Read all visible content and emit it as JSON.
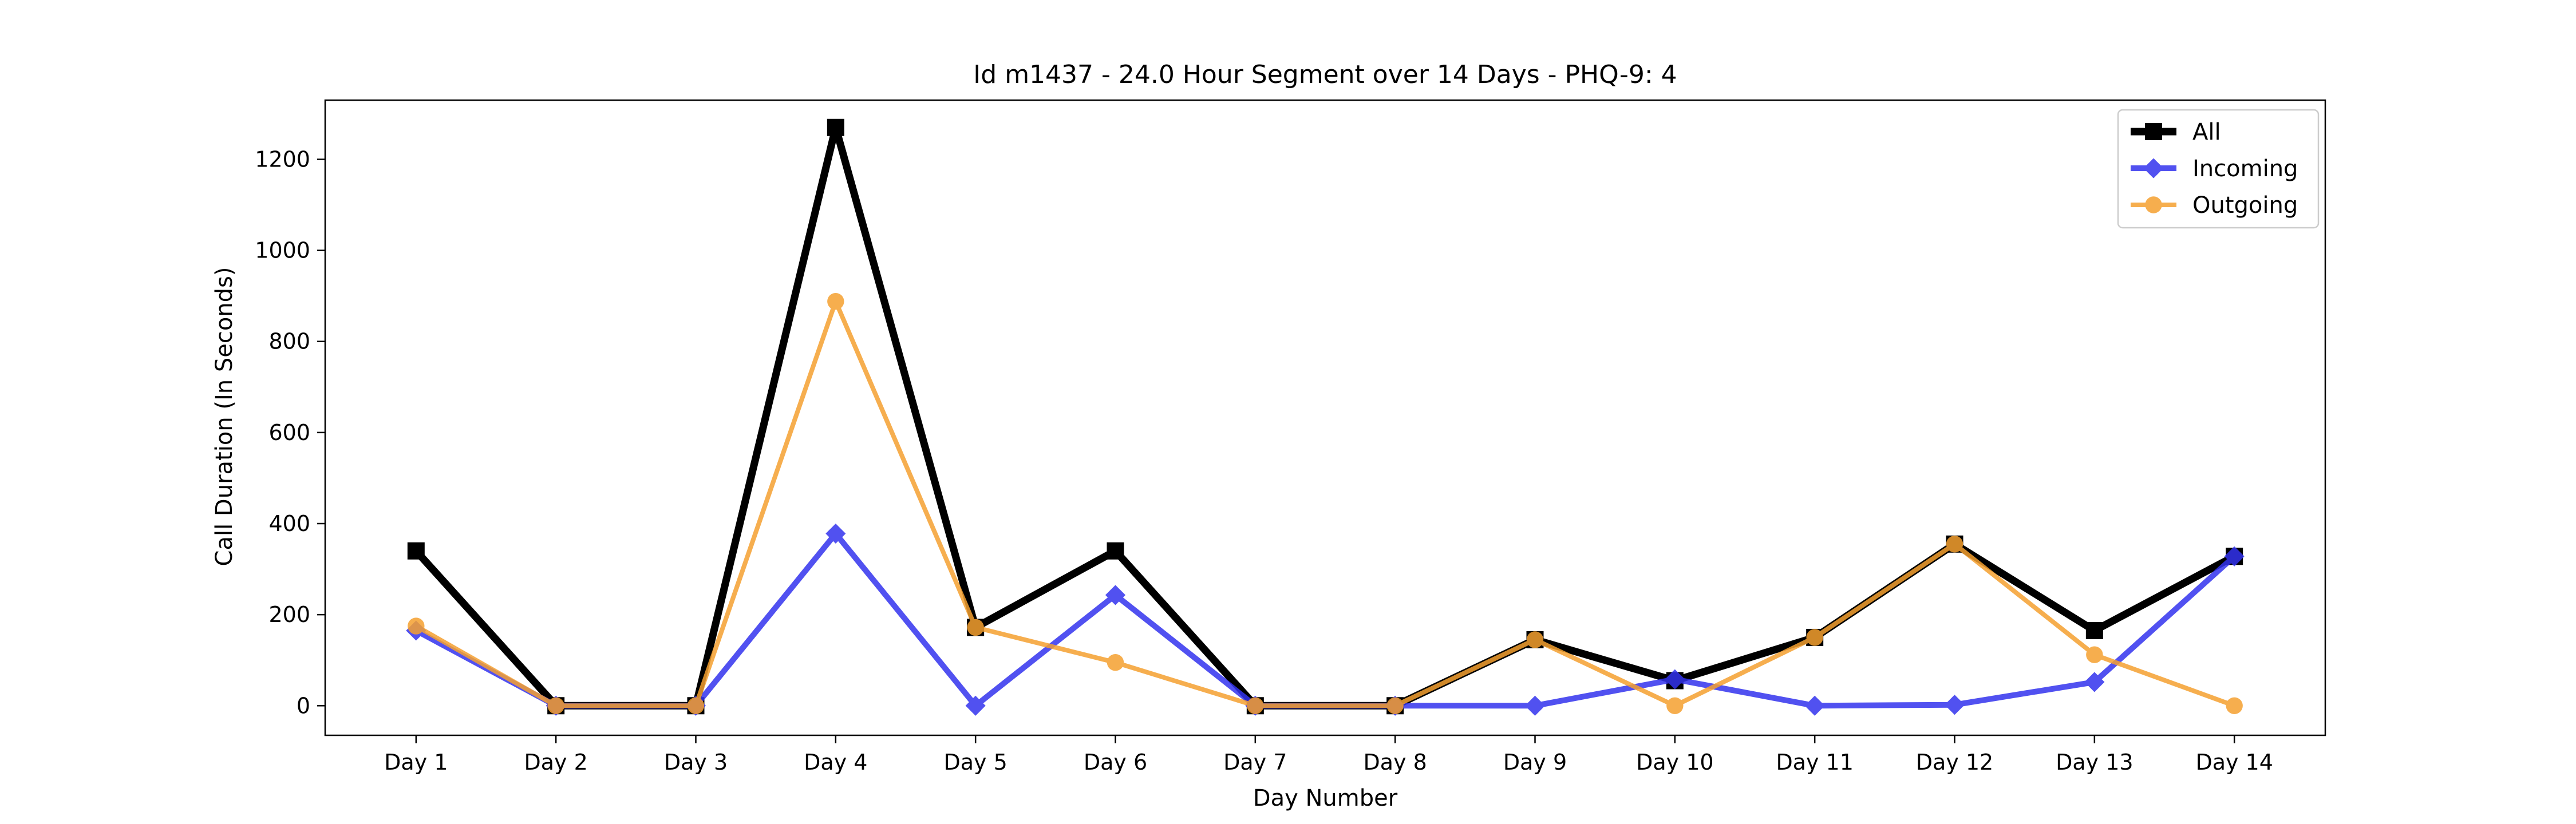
{
  "chart_data": {
    "type": "line",
    "title": "Id m1437 - 24.0 Hour Segment over 14 Days - PHQ-9: 4",
    "xlabel": "Day Number",
    "ylabel": "Call Duration (In Seconds)",
    "categories": [
      "Day 1",
      "Day 2",
      "Day 3",
      "Day 4",
      "Day 5",
      "Day 6",
      "Day 7",
      "Day 8",
      "Day 9",
      "Day 10",
      "Day 11",
      "Day 12",
      "Day 13",
      "Day 14"
    ],
    "ylim": [
      -65,
      1330
    ],
    "yticks": [
      0,
      200,
      400,
      600,
      800,
      1000,
      1200
    ],
    "grid": false,
    "legend_position": "top-right",
    "series": [
      {
        "name": "All",
        "color": "#000000",
        "marker": "square",
        "values": [
          340,
          0,
          0,
          1270,
          172,
          340,
          0,
          0,
          145,
          55,
          150,
          355,
          165,
          328
        ]
      },
      {
        "name": "Incoming",
        "color": "#3333ee",
        "marker": "diamond",
        "values": [
          165,
          0,
          0,
          378,
          0,
          243,
          0,
          0,
          0,
          58,
          0,
          2,
          52,
          328
        ]
      },
      {
        "name": "Outgoing",
        "color": "#f5a030",
        "marker": "circle",
        "values": [
          175,
          0,
          0,
          888,
          172,
          95,
          0,
          0,
          145,
          0,
          150,
          355,
          112,
          0
        ]
      }
    ]
  }
}
